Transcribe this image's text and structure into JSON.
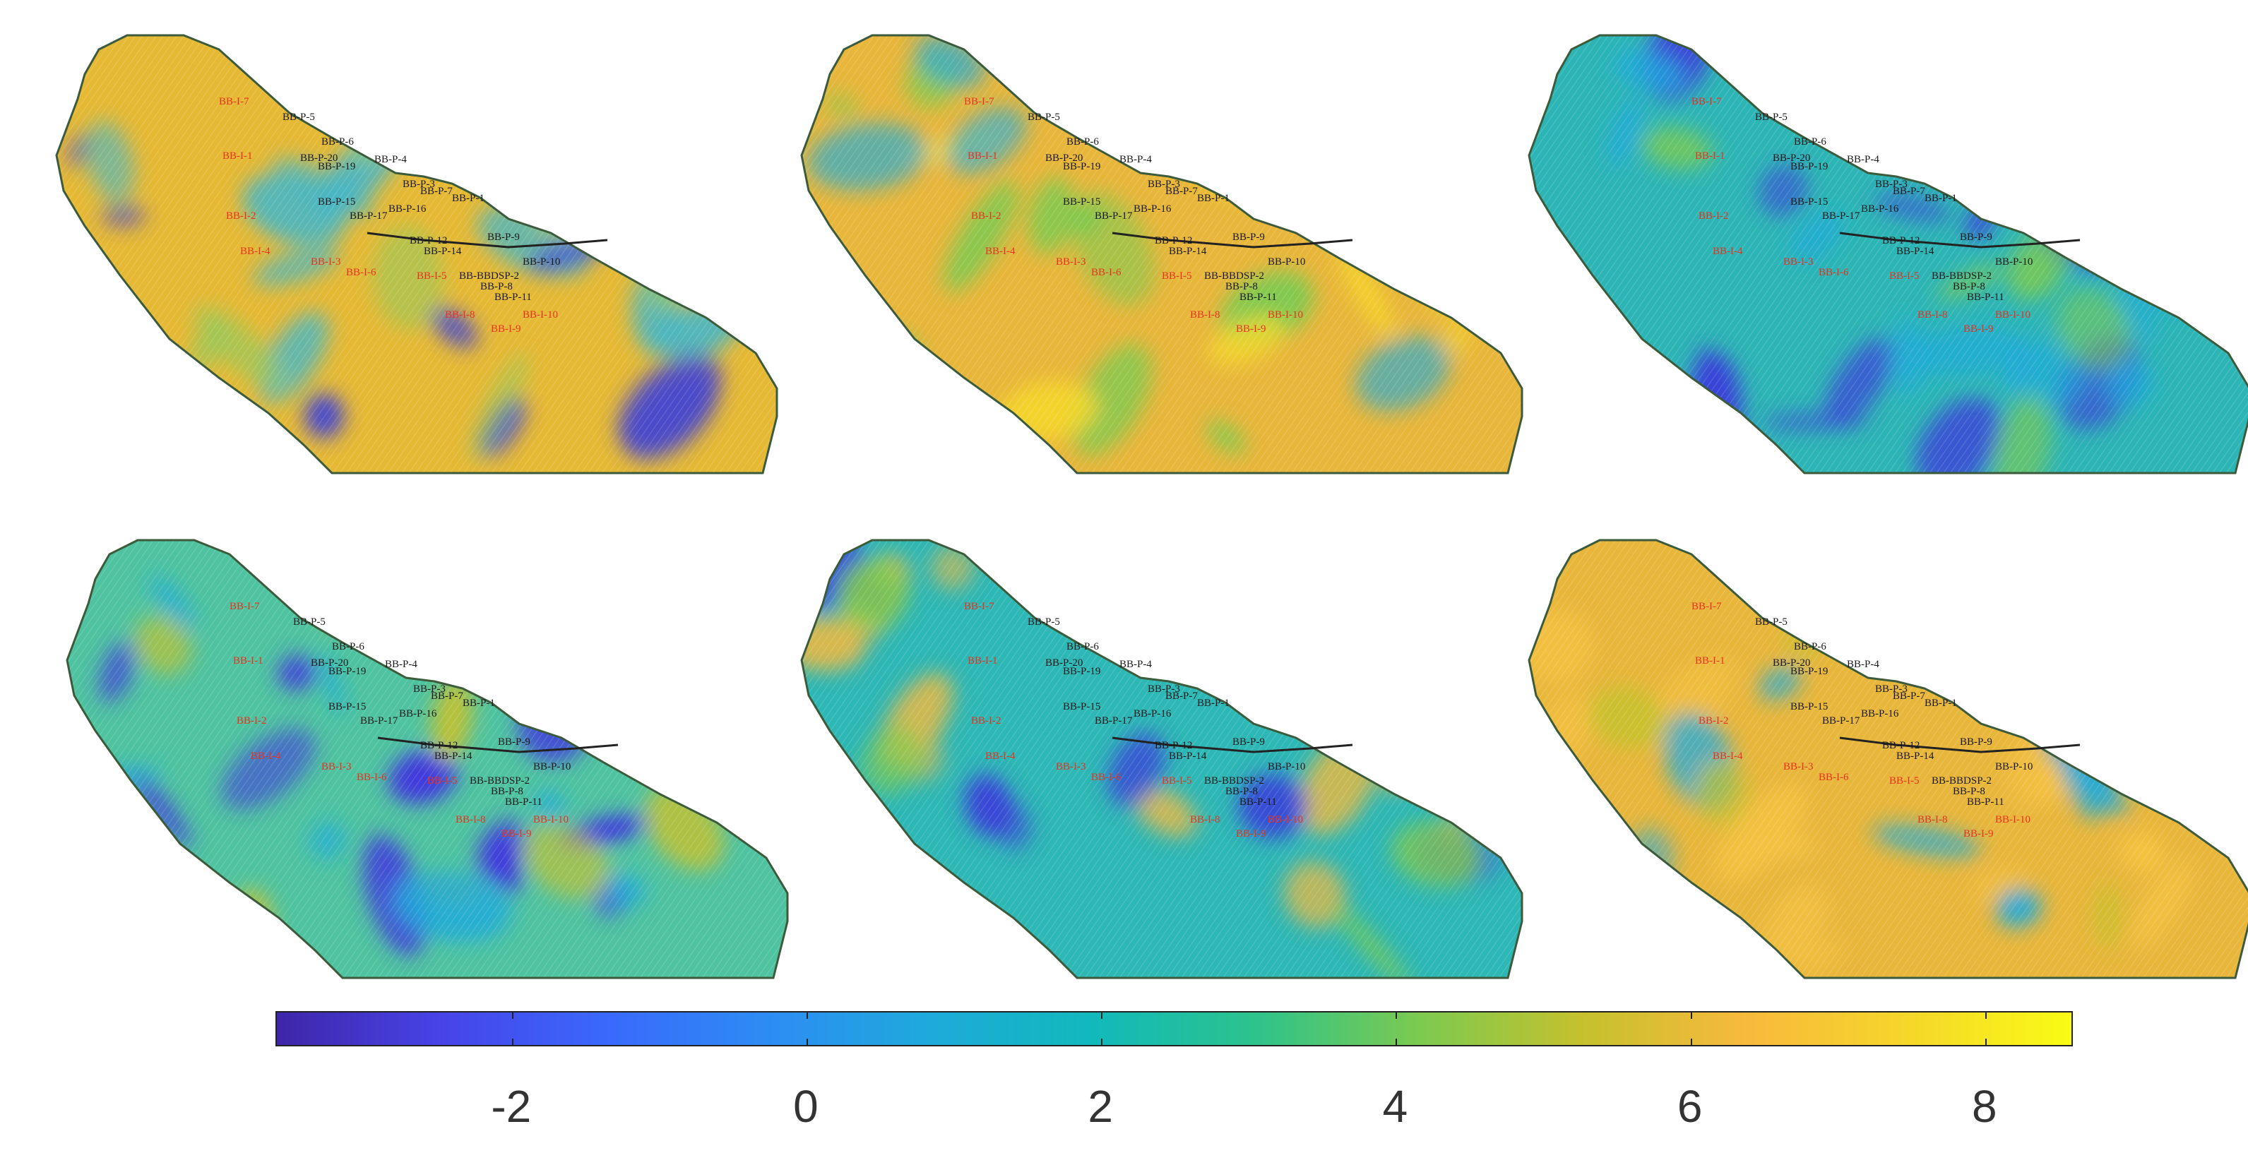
{
  "colorbar": {
    "min": -3.6,
    "max": 8.6,
    "ticks": [
      {
        "value": -2,
        "label": "-2"
      },
      {
        "value": 0,
        "label": "0"
      },
      {
        "value": 2,
        "label": "2"
      },
      {
        "value": 4,
        "label": "4"
      },
      {
        "value": 6,
        "label": "6"
      },
      {
        "value": 8,
        "label": "8"
      }
    ],
    "colormap": [
      "#3e26a8",
      "#4743e8",
      "#3a68fc",
      "#2d8cf4",
      "#1eaadb",
      "#11b9bb",
      "#2dc38c",
      "#7cca50",
      "#c5c12d",
      "#f8b93c",
      "#f5d72a",
      "#f9fb15"
    ]
  },
  "well_labels_black": [
    "BB-P-5",
    "BB-P-6",
    "BB-P-20",
    "BB-P-19",
    "BB-P-4",
    "BB-P-3",
    "BB-P-7",
    "BB-P-1",
    "BB-P-15",
    "BB-P-16",
    "BB-P-17",
    "BB-P-9",
    "BB-P-12",
    "BB-P-14",
    "BB-P-10",
    "BB-BBDSP-2",
    "BB-P-8",
    "BB-P-11"
  ],
  "well_labels_red": [
    "BB-I-7",
    "BB-I-1",
    "BB-I-2",
    "BB-I-4",
    "BB-I-3",
    "BB-I-6",
    "BB-I-5",
    "BB-I-8",
    "BB-I-9",
    "BB-I-10"
  ],
  "panels": [
    {
      "id": "panel-1",
      "base": "#e6b934",
      "patch1": "#45b6c6",
      "patch2": "#3a3fd9",
      "patch3": "#97c85a"
    },
    {
      "id": "panel-2",
      "base": "#e8b63a",
      "patch1": "#7cca50",
      "patch2": "#f5d72a",
      "patch3": "#1eaadb"
    },
    {
      "id": "panel-3",
      "base": "#2db5b5",
      "patch1": "#3a3fd9",
      "patch2": "#1eaadb",
      "patch3": "#7cca50"
    },
    {
      "id": "panel-4",
      "base": "#4fc3a0",
      "patch1": "#3e2fe0",
      "patch2": "#c5c12d",
      "patch3": "#1eaadb"
    },
    {
      "id": "panel-5",
      "base": "#2db7b5",
      "patch1": "#e3b847",
      "patch2": "#3a3fd9",
      "patch3": "#7cca50"
    },
    {
      "id": "panel-6",
      "base": "#e8b63a",
      "patch1": "#f5c242",
      "patch2": "#1eaadb",
      "patch3": "#c5c12d"
    }
  ]
}
